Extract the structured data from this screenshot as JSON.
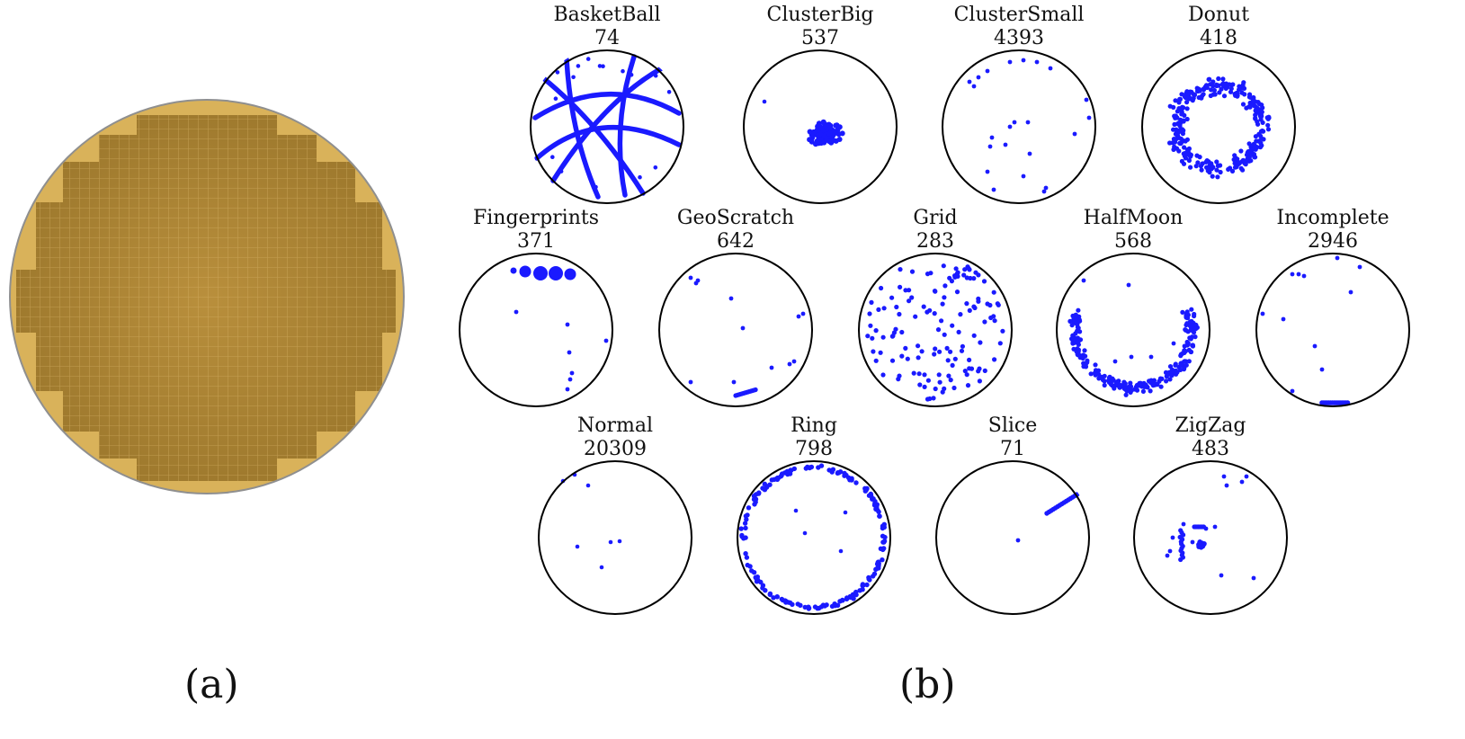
{
  "figure": {
    "panel_a": {
      "caption": "(a)"
    },
    "panel_b": {
      "caption": "(b)"
    }
  },
  "colors": {
    "defect_points": "#1a1aff",
    "wafer_gold": "#b48a38",
    "wafer_edge": "#d9b560",
    "outline": "#000000"
  },
  "wafer_maps": [
    {
      "name": "BasketBall",
      "count": "74"
    },
    {
      "name": "ClusterBig",
      "count": "537"
    },
    {
      "name": "ClusterSmall",
      "count": "4393"
    },
    {
      "name": "Donut",
      "count": "418"
    },
    {
      "name": "Fingerprints",
      "count": "371"
    },
    {
      "name": "GeoScratch",
      "count": "642"
    },
    {
      "name": "Grid",
      "count": "283"
    },
    {
      "name": "HalfMoon",
      "count": "568"
    },
    {
      "name": "Incomplete",
      "count": "2946"
    },
    {
      "name": "Normal",
      "count": "20309"
    },
    {
      "name": "Ring",
      "count": "798"
    },
    {
      "name": "Slice",
      "count": "71"
    },
    {
      "name": "ZigZag",
      "count": "483"
    }
  ]
}
